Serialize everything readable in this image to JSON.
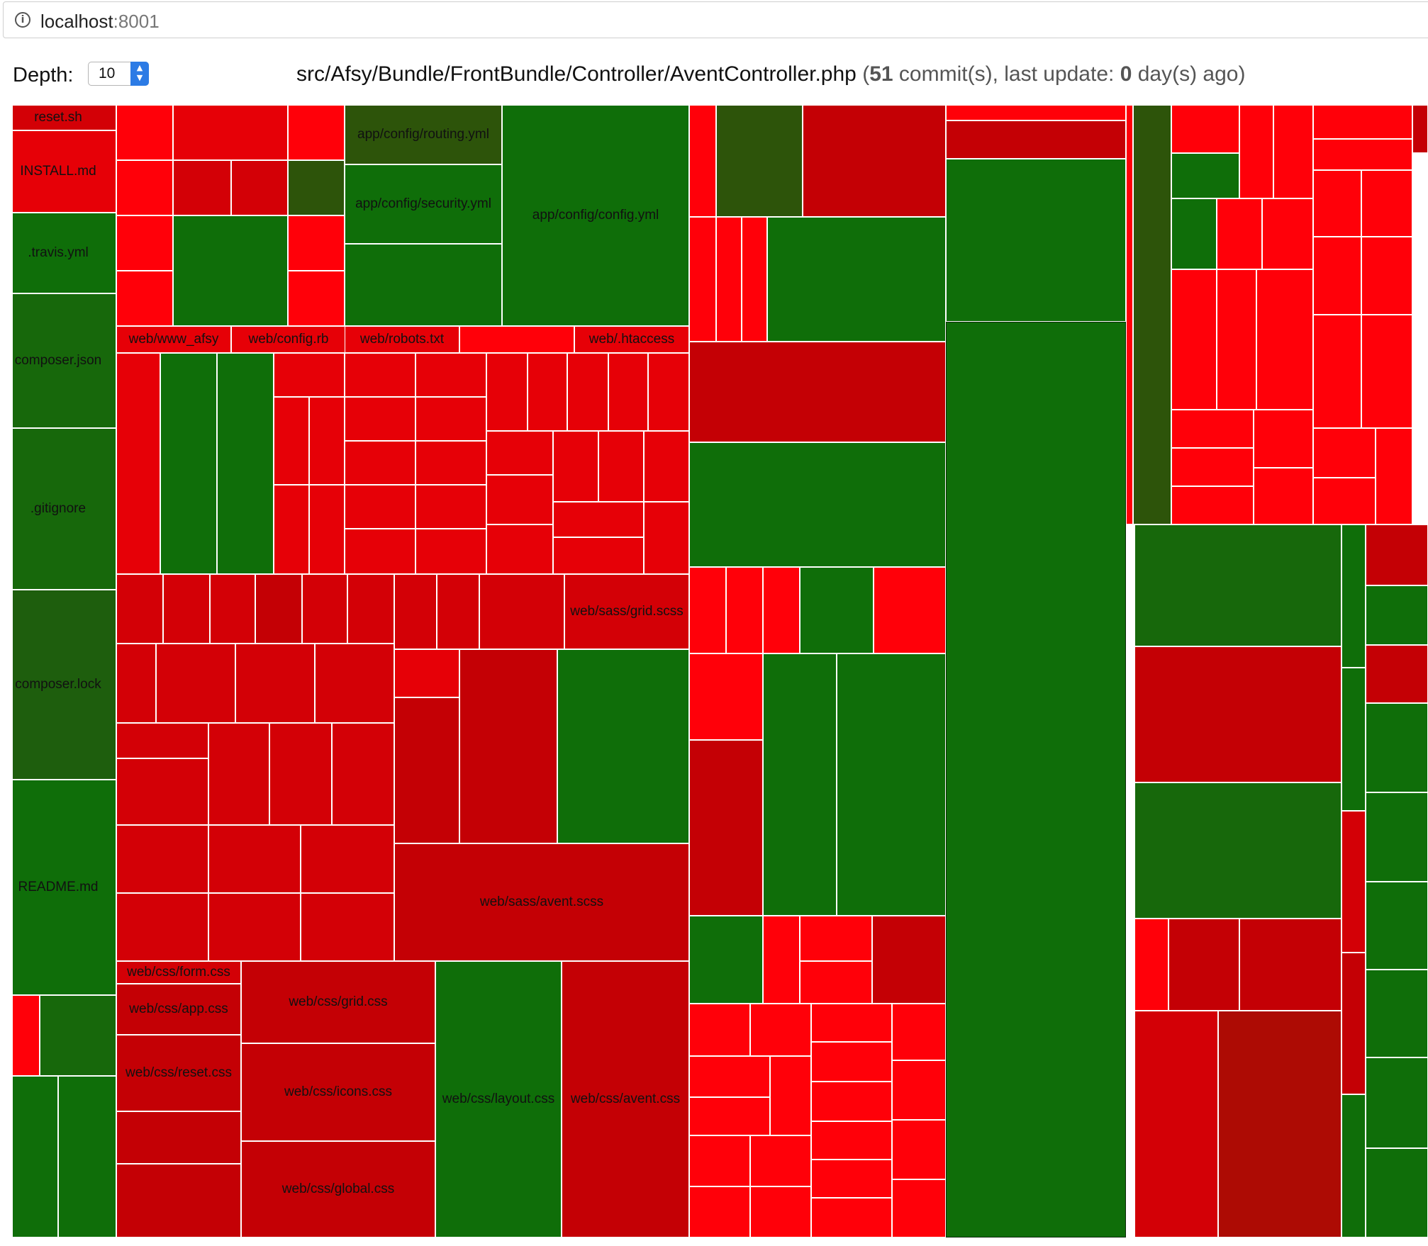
{
  "browser": {
    "host": "localhost",
    "port": ":8001",
    "info_icon": "info-icon"
  },
  "controls": {
    "depth_label": "Depth:",
    "depth_value": "10",
    "stepper_icon": "stepper-arrows-icon"
  },
  "header": {
    "path": "src/Afsy/Bundle/FrontBundle/Controller/AventController.php",
    "open": "(",
    "commits": "51",
    "commits_label": "commit(s), last update:",
    "days": "0",
    "days_label": "day(s) ago)"
  },
  "legend_colors": {
    "recent": "#0f6e09",
    "old": "#ff0009"
  },
  "labels": {
    "reset_sh": "reset.sh",
    "install_md": "INSTALL.md",
    "travis_yml": ".travis.yml",
    "composer_json": "composer.json",
    "gitignore": ".gitignore",
    "composer_lock": "composer.lock",
    "readme_md": "README.md",
    "routing_yml": "app/config/routing.yml",
    "security_yml": "app/config/security.yml",
    "config_yml": "app/config/config.yml",
    "web_www_afsy": "web/www_afsy",
    "web_config_rb": "web/config.rb",
    "web_robots_txt": "web/robots.txt",
    "web_htaccess": "web/.htaccess",
    "grid_scss": "web/sass/grid.scss",
    "avent_scss": "web/sass/avent.scss",
    "form_css": "web/css/form.css",
    "app_css": "web/css/app.css",
    "reset_css": "web/css/reset.css",
    "grid_css": "web/css/grid.css",
    "icons_css": "web/css/icons.css",
    "global_css": "web/css/global.css",
    "layout_css": "web/css/layout.css",
    "avent_css": "web/css/avent.css"
  }
}
